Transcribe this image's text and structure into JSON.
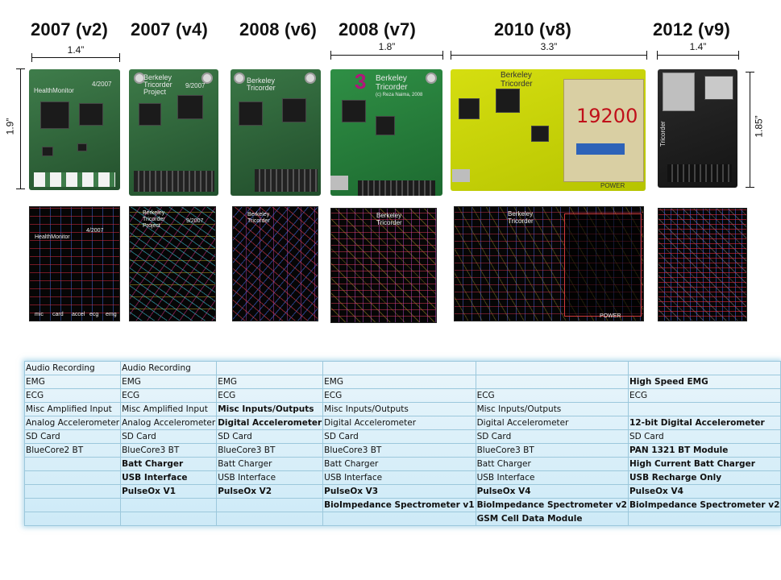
{
  "versions": [
    {
      "label": "2007 (v2)"
    },
    {
      "label": "2007 (v4)"
    },
    {
      "label": "2008 (v6)"
    },
    {
      "label": "2008 (v7)"
    },
    {
      "label": "2010 (v8)"
    },
    {
      "label": "2012 (v9)"
    }
  ],
  "dimensions": {
    "v2_width": "1.4”",
    "v7_width": "1.8”",
    "v8_width": "3.3”",
    "v9_width": "1.4”",
    "v2_height": "1.9”",
    "v9_height": "1.85”"
  },
  "board_text": {
    "v2_name": "HealthMonitor",
    "v2_date": "4/2007",
    "v4_name": "Berkeley\nTricorder\nProject",
    "v4_date": "9/2007",
    "v6_name": "Berkeley\nTricorder",
    "v7_name": "Berkeley\nTricorder",
    "v7_sub": "(c) Reza Naima, 2008",
    "v7_marker": "3",
    "v8_name": "Berkeley\nTricorder",
    "v8_marker": "19200",
    "v8_power": "POWER",
    "v9_name": "Tricorder"
  },
  "layout_text": {
    "v2_name": "HealthMonitor",
    "v2_date": "4/2007",
    "v2_labels": [
      "mic",
      "card",
      "accel",
      "ecg",
      "emg"
    ],
    "v4_name": "Berkeley\nTricorder\nProject",
    "v4_date": "9/2007",
    "v6_name": "Berkeley\nTricorder",
    "v7_name": "Berkeley\nTricorder",
    "v8_name": "Berkeley\nTricorder",
    "v8_power": "POWER"
  },
  "table": {
    "rows": [
      {
        "cells": [
          {
            "t": "Audio Recording"
          },
          {
            "t": "Audio Recording"
          },
          {
            "t": ""
          },
          {
            "t": ""
          },
          {
            "t": ""
          },
          {
            "t": ""
          }
        ]
      },
      {
        "cells": [
          {
            "t": "EMG"
          },
          {
            "t": "EMG"
          },
          {
            "t": "EMG"
          },
          {
            "t": "EMG"
          },
          {
            "t": ""
          },
          {
            "t": "High Speed EMG",
            "b": true
          }
        ]
      },
      {
        "cells": [
          {
            "t": "ECG"
          },
          {
            "t": "ECG"
          },
          {
            "t": "ECG"
          },
          {
            "t": "ECG"
          },
          {
            "t": "ECG"
          },
          {
            "t": "ECG"
          }
        ]
      },
      {
        "cells": [
          {
            "t": "Misc Amplified Input"
          },
          {
            "t": "Misc Amplified Input"
          },
          {
            "t": "Misc Inputs/Outputs",
            "b": true
          },
          {
            "t": "Misc Inputs/Outputs"
          },
          {
            "t": "Misc Inputs/Outputs"
          },
          {
            "t": ""
          }
        ]
      },
      {
        "cells": [
          {
            "t": "Analog Accelerometer"
          },
          {
            "t": "Analog Accelerometer"
          },
          {
            "t": "Digital Accelerometer",
            "b": true
          },
          {
            "t": "Digital Accelerometer"
          },
          {
            "t": "Digital Accelerometer"
          },
          {
            "t": "12-bit Digital Accelerometer",
            "b": true
          }
        ]
      },
      {
        "cells": [
          {
            "t": "SD Card"
          },
          {
            "t": "SD Card"
          },
          {
            "t": "SD Card"
          },
          {
            "t": "SD Card"
          },
          {
            "t": "SD Card"
          },
          {
            "t": "SD Card"
          }
        ]
      },
      {
        "cells": [
          {
            "t": "BlueCore2 BT"
          },
          {
            "t": "BlueCore3 BT"
          },
          {
            "t": "BlueCore3 BT"
          },
          {
            "t": "BlueCore3 BT"
          },
          {
            "t": "BlueCore3 BT"
          },
          {
            "t": "PAN 1321 BT Module",
            "b": true
          }
        ]
      },
      {
        "cells": [
          {
            "t": ""
          },
          {
            "t": "Batt Charger",
            "b": true
          },
          {
            "t": "Batt Charger"
          },
          {
            "t": "Batt Charger"
          },
          {
            "t": "Batt Charger"
          },
          {
            "t": "High Current  Batt Charger",
            "b": true
          }
        ]
      },
      {
        "cells": [
          {
            "t": ""
          },
          {
            "t": "USB Interface",
            "b": true
          },
          {
            "t": "USB Interface"
          },
          {
            "t": "USB Interface"
          },
          {
            "t": "USB Interface"
          },
          {
            "t": "USB Recharge Only",
            "b": true
          }
        ]
      },
      {
        "cells": [
          {
            "t": ""
          },
          {
            "t": "PulseOx V1",
            "b": true
          },
          {
            "t": "PulseOx V2",
            "b": true
          },
          {
            "t": "PulseOx V3",
            "b": true
          },
          {
            "t": "PulseOx V4",
            "b": true
          },
          {
            "t": "PulseOx V4",
            "b": true
          }
        ]
      },
      {
        "cells": [
          {
            "t": ""
          },
          {
            "t": ""
          },
          {
            "t": ""
          },
          {
            "t": "BioImpedance Spectrometer v1",
            "b": true
          },
          {
            "t": "BioImpedance Spectrometer v2",
            "b": true
          },
          {
            "t": "BioImpedance Spectrometer v2",
            "b": true
          }
        ]
      },
      {
        "cells": [
          {
            "t": ""
          },
          {
            "t": ""
          },
          {
            "t": ""
          },
          {
            "t": ""
          },
          {
            "t": "GSM Cell Data Module",
            "b": true
          },
          {
            "t": ""
          }
        ]
      }
    ]
  },
  "colors": {
    "pcb_green": "#2f6b3c",
    "pcb_yellow": "#c8d400",
    "pcb_black": "#1a1a1a",
    "table_bg": "#d6eef9",
    "table_border": "#9cc8dc"
  }
}
